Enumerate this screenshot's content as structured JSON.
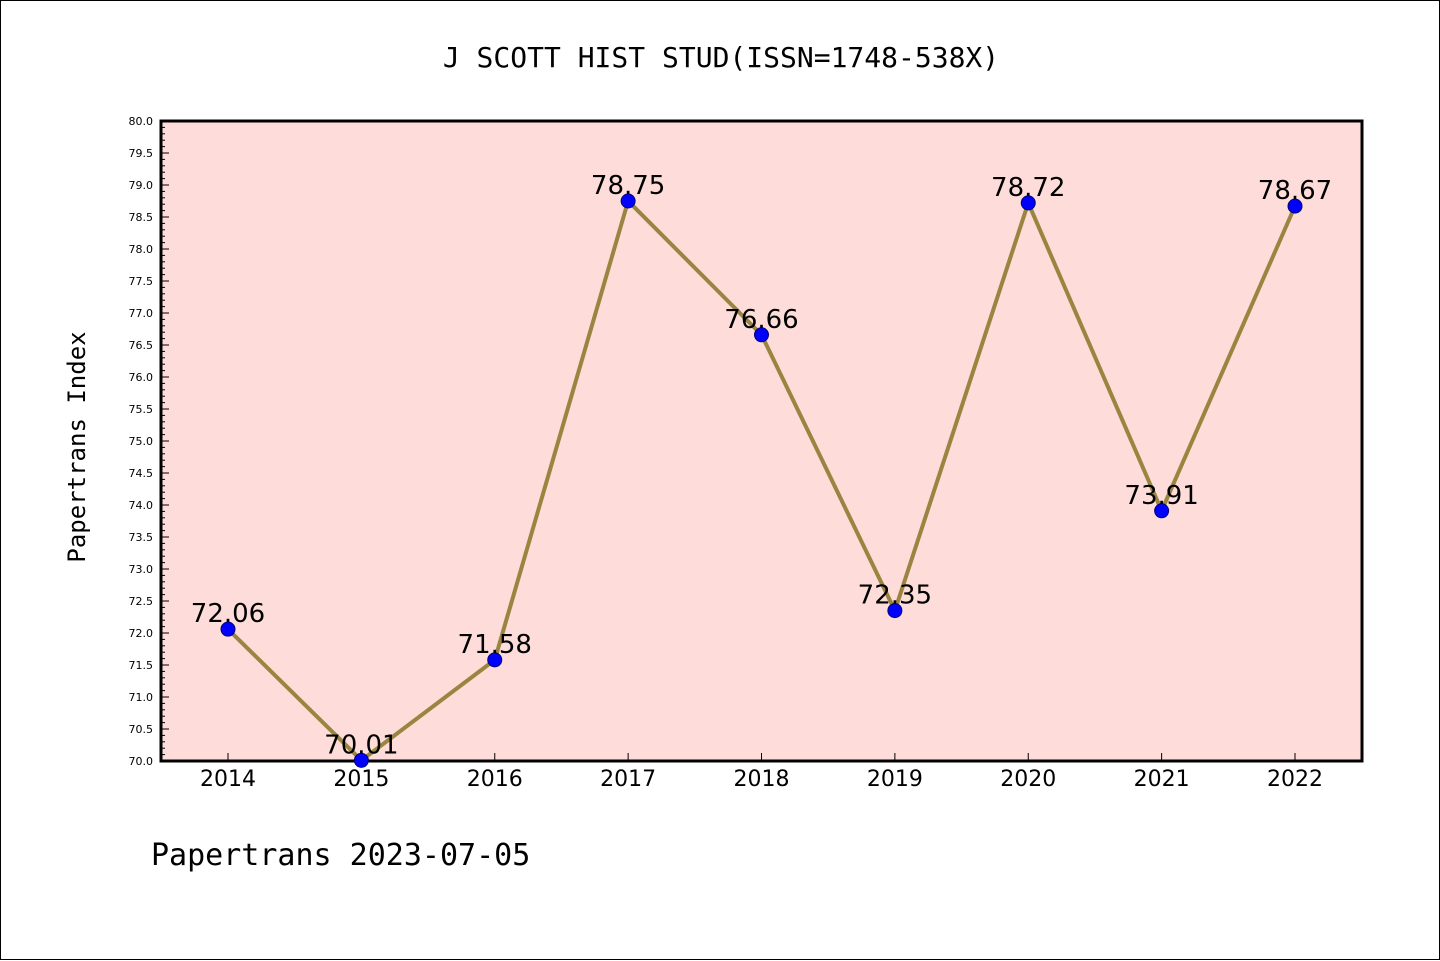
{
  "chart_data": {
    "type": "line",
    "title": "J SCOTT HIST STUD(ISSN=1748-538X)",
    "xlabel": "",
    "ylabel": "Papertrans Index",
    "footer": "Papertrans 2023-07-05",
    "categories": [
      "2014",
      "2015",
      "2016",
      "2017",
      "2018",
      "2019",
      "2020",
      "2021",
      "2022"
    ],
    "series": [
      {
        "values": [
          72.06,
          70.01,
          71.58,
          78.75,
          76.66,
          72.35,
          78.72,
          73.91,
          78.67
        ],
        "labels": [
          "72.06",
          "70.01",
          "71.58",
          "78.75",
          "76.66",
          "72.35",
          "78.72",
          "73.91",
          "78.67"
        ]
      }
    ],
    "ylim": [
      70.0,
      80.0
    ],
    "yticks": [
      "70.0",
      "70.5",
      "71.0",
      "71.5",
      "72.0",
      "72.5",
      "73.0",
      "73.5",
      "74.0",
      "74.5",
      "75.0",
      "75.5",
      "76.0",
      "76.5",
      "77.0",
      "77.5",
      "78.0",
      "78.5",
      "79.0",
      "79.5",
      "80.0"
    ],
    "grid": false,
    "legend": "none",
    "colors": {
      "plot_background": "#fddcd9",
      "line": "#9a8540",
      "marker": "#0000ff",
      "marker_edge": "#00007a"
    }
  }
}
